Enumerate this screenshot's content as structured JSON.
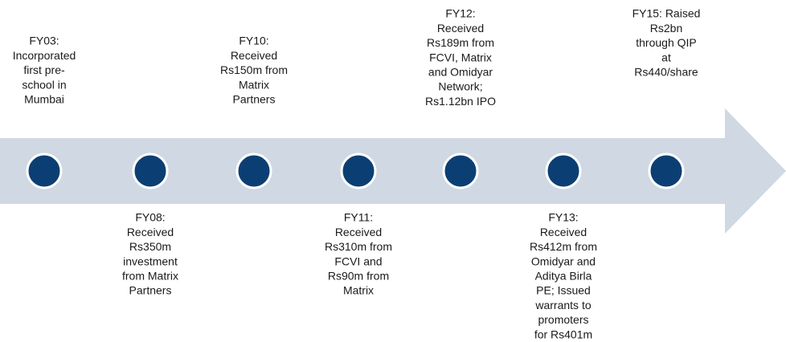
{
  "nodes": [
    {
      "lines": [
        "FY03:",
        "Incorporated",
        "first pre-",
        "school in",
        "Mumbai"
      ]
    },
    {
      "lines": [
        "FY08:",
        "Received",
        "Rs350m",
        "investment",
        "from Matrix",
        "Partners"
      ]
    },
    {
      "lines": [
        "FY10:",
        "Received",
        "Rs150m from",
        "Matrix",
        "Partners"
      ]
    },
    {
      "lines": [
        "FY11:",
        "Received",
        "Rs310m from",
        "FCVI and",
        "Rs90m from",
        "Matrix"
      ]
    },
    {
      "lines": [
        "FY12:",
        "Received",
        "Rs189m from",
        "FCVI, Matrix",
        "and Omidyar",
        "Network;",
        "Rs1.12bn IPO"
      ]
    },
    {
      "lines": [
        "FY13:",
        "Received",
        "Rs412m from",
        "Omidyar and",
        "Aditya Birla",
        "PE; Issued",
        "warrants to",
        "promoters",
        "for Rs401m"
      ]
    },
    {
      "lines": [
        "FY15: Raised",
        "Rs2bn",
        "through QIP",
        "at",
        "Rs440/share"
      ]
    }
  ]
}
